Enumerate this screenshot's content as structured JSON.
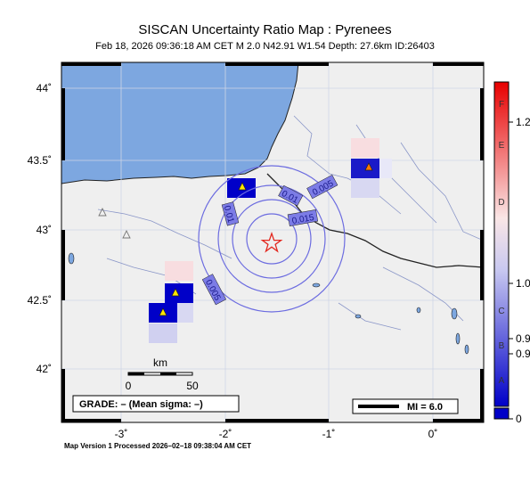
{
  "title": "SISCAN Uncertainty Ratio Map : Pyrenees",
  "subtitle": "Feb 18, 2026 09:36:18 AM CET   M 2.0   N42.91 W1.54   Depth: 27.6km   ID:26403",
  "footer": "Map Version 1 Processed 2026–02–18 09:38:04 AM CET",
  "map": {
    "y_ticks": [
      "44˚",
      "43.5˚",
      "43˚",
      "42.5˚",
      "42˚"
    ],
    "x_ticks": [
      "-3˚",
      "-2˚",
      "-1˚",
      "0˚"
    ],
    "contour_labels": [
      "0.005",
      "0.01",
      "0.015",
      "0.01",
      "0.005"
    ],
    "scalebar": {
      "title": "km",
      "left": "0",
      "right": "50"
    },
    "grade": "GRADE: – (Mean sigma: –)",
    "mi_label": "MI = 6.0",
    "colors": {
      "sea": "#7da7e0",
      "land": "#efefef",
      "epicenter": "#e3281f",
      "contour": "#6c6ce0"
    }
  },
  "colorbar": {
    "letters": [
      "F",
      "E",
      "D",
      "C",
      "B",
      "A"
    ],
    "values": [
      "1.2",
      "1.0",
      "0.9",
      "0.9",
      "0"
    ]
  },
  "stations": [
    "station-active",
    "station-active",
    "station-active",
    "station-active-orange",
    "station-inactive",
    "station-inactive"
  ]
}
